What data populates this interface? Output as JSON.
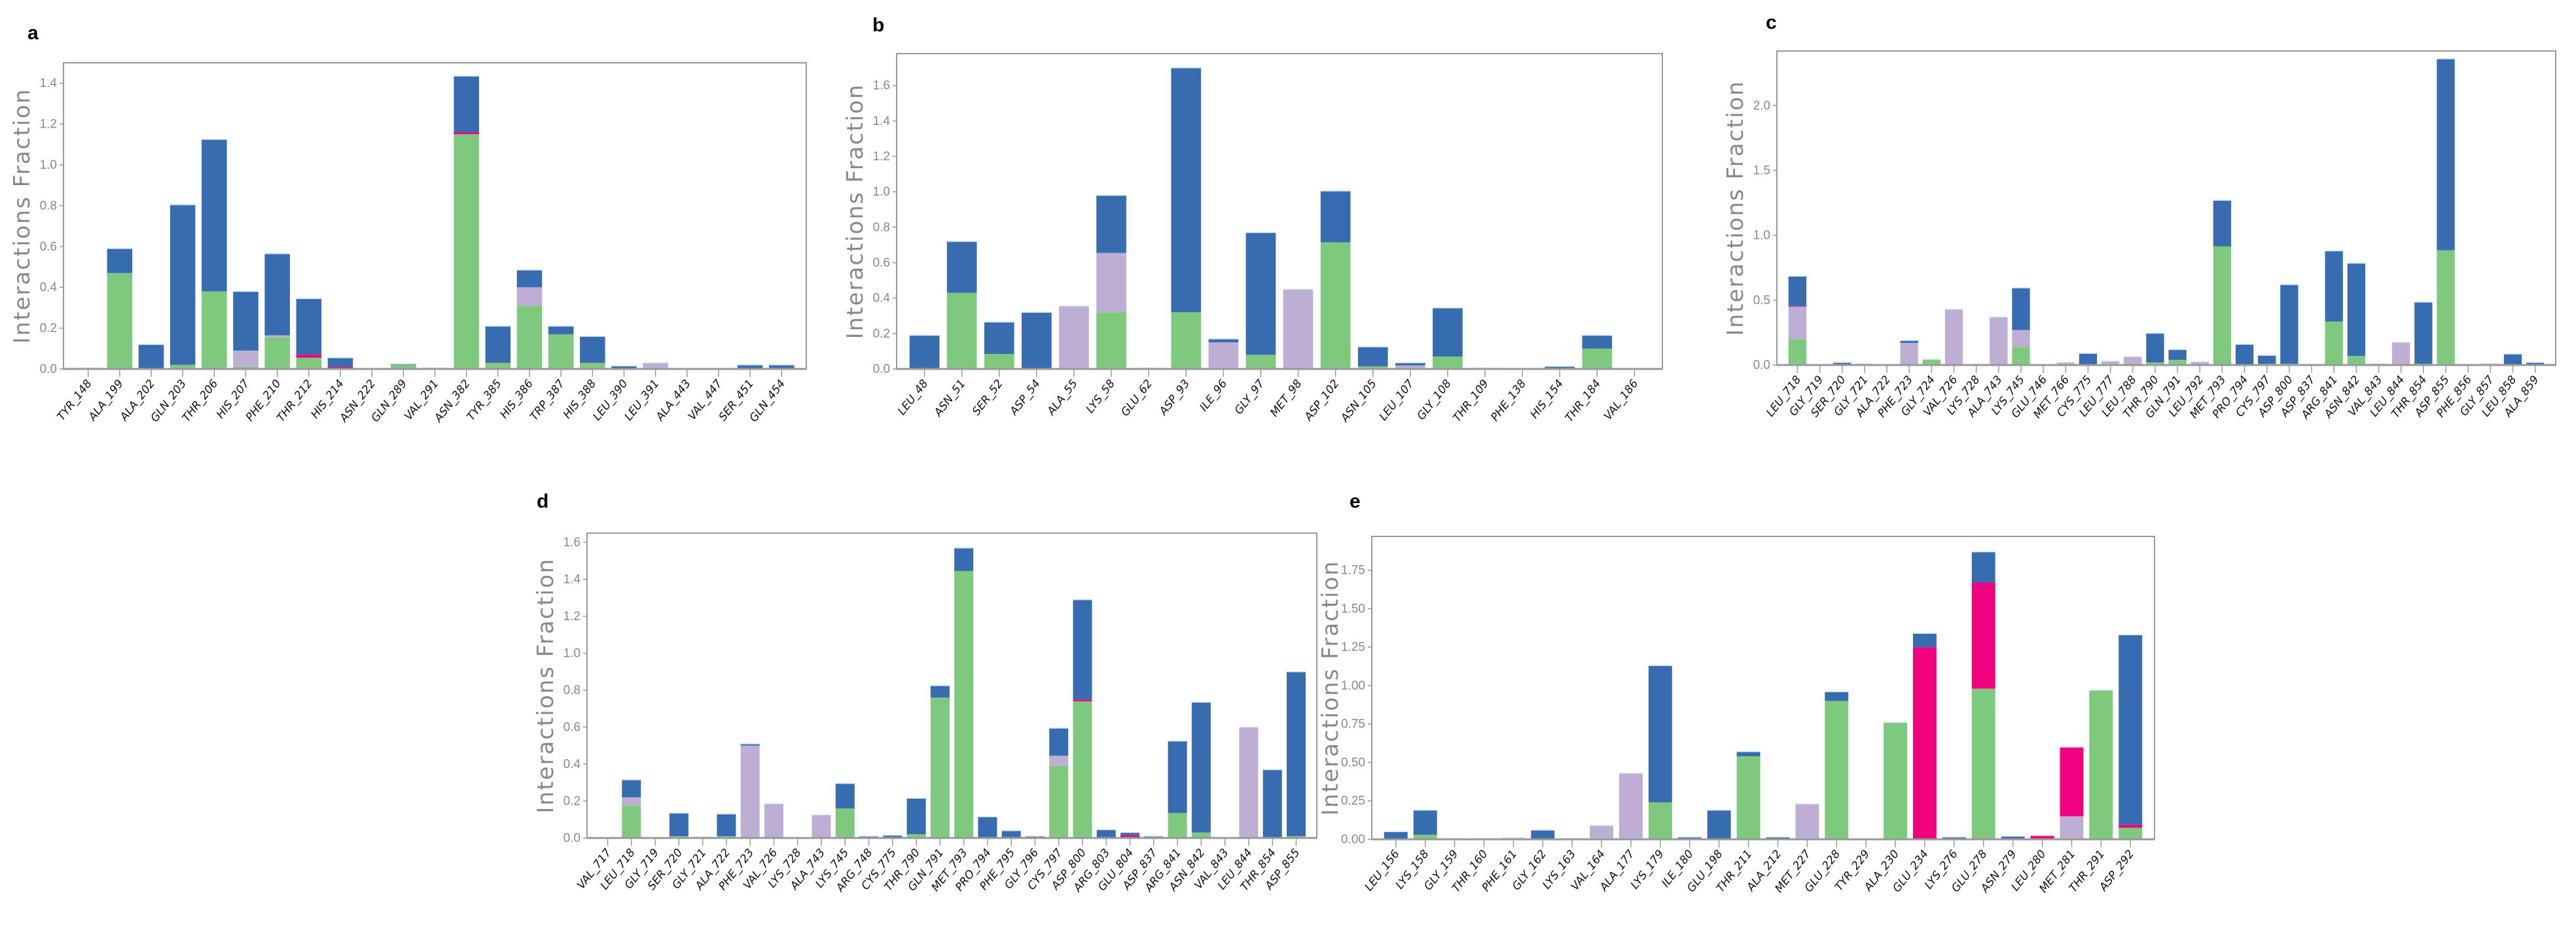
{
  "chart_data": [
    {
      "panel": "a",
      "type": "bar",
      "stacked": true,
      "ylabel": "Interactions Fraction",
      "ylim": [
        0,
        1.5
      ],
      "ytick_step": 0.2,
      "ytick_decimals": 1,
      "categories": [
        "TYR_148",
        "ALA_199",
        "ALA_202",
        "GLN_203",
        "THR_206",
        "HIS_207",
        "PHE_210",
        "THR_212",
        "HIS_214",
        "ASN_222",
        "GLN_289",
        "VAL_291",
        "ASN_382",
        "TYR_385",
        "HIS_386",
        "TRP_387",
        "HIS_388",
        "LEU_390",
        "LEU_391",
        "ALA_443",
        "VAL_447",
        "SER_451",
        "GLN_454"
      ],
      "series": [
        {
          "key": "green",
          "color": "#7fc97f",
          "values": [
            0,
            0.47,
            0,
            0.02,
            0.38,
            0.01,
            0.155,
            0.055,
            0,
            0,
            0.02,
            0,
            1.15,
            0.03,
            0.31,
            0.17,
            0.03,
            0,
            0,
            0,
            0,
            0,
            0.005
          ]
        },
        {
          "key": "lavender",
          "color": "#beaed4",
          "values": [
            0,
            0,
            0,
            0,
            0,
            0.08,
            0.01,
            0,
            0,
            0,
            0,
            0,
            0,
            0,
            0.09,
            0,
            0,
            0,
            0.03,
            0,
            0,
            0,
            0
          ]
        },
        {
          "key": "magenta",
          "color": "#f0027f",
          "values": [
            0,
            0,
            0,
            0,
            0,
            0,
            0,
            0.015,
            0.01,
            0,
            0,
            0,
            0.01,
            0,
            0,
            0,
            0,
            0,
            0,
            0,
            0,
            0,
            0
          ]
        },
        {
          "key": "blue",
          "color": "#386cb0",
          "values": [
            0.005,
            0.12,
            0.12,
            0.785,
            0.745,
            0.29,
            0.4,
            0.275,
            0.045,
            0,
            0.005,
            0.005,
            0.275,
            0.18,
            0.085,
            0.04,
            0.13,
            0.015,
            0,
            0,
            0,
            0.02,
            0.015
          ]
        }
      ]
    },
    {
      "panel": "b",
      "type": "bar",
      "stacked": true,
      "ylabel": "Interactions Fraction",
      "ylim": [
        0,
        1.78
      ],
      "ytick_step": 0.2,
      "ytick_decimals": 1,
      "categories": [
        "LEU_48",
        "ASN_51",
        "SER_52",
        "ASP_54",
        "ALA_55",
        "LYS_58",
        "GLU_62",
        "ASP_93",
        "ILE_96",
        "GLY_97",
        "MET_98",
        "ASP_102",
        "ASN_105",
        "LEU_107",
        "GLY_108",
        "THR_109",
        "PHE_138",
        "HIS_154",
        "THR_184",
        "VAL_186"
      ],
      "series": [
        {
          "key": "green",
          "color": "#7fc97f",
          "values": [
            0,
            0.43,
            0.085,
            0,
            0,
            0.32,
            0,
            0.32,
            0,
            0.08,
            0,
            0.715,
            0.015,
            0,
            0.07,
            0,
            0,
            0,
            0.115,
            0
          ]
        },
        {
          "key": "lavender",
          "color": "#beaed4",
          "values": [
            0,
            0,
            0,
            0,
            0.355,
            0.335,
            0,
            0,
            0.15,
            0,
            0.45,
            0,
            0,
            0.02,
            0,
            0,
            0,
            0,
            0,
            0
          ]
        },
        {
          "key": "magenta",
          "color": "#f0027f",
          "values": [
            0,
            0,
            0,
            0,
            0,
            0,
            0,
            0,
            0,
            0,
            0,
            0,
            0,
            0,
            0,
            0,
            0,
            0,
            0,
            0
          ]
        },
        {
          "key": "blue",
          "color": "#386cb0",
          "values": [
            0.19,
            0.29,
            0.18,
            0.32,
            0,
            0.325,
            0.005,
            1.38,
            0.02,
            0.69,
            0,
            0.29,
            0.11,
            0.015,
            0.275,
            0.005,
            0,
            0.015,
            0.075,
            0
          ]
        }
      ]
    },
    {
      "panel": "c",
      "type": "bar",
      "stacked": true,
      "ylabel": "Interactions Fraction",
      "ylim": [
        0,
        2.42
      ],
      "ytick_step": 0.5,
      "ytick_decimals": 1,
      "categories": [
        "LEU_718",
        "GLY_719",
        "SER_720",
        "GLY_721",
        "ALA_722",
        "PHE_723",
        "GLY_724",
        "VAL_726",
        "LYS_728",
        "ALA_743",
        "LYS_745",
        "GLU_746",
        "MET_766",
        "CYS_775",
        "LEU_777",
        "LEU_788",
        "THR_790",
        "GLN_791",
        "LEU_792",
        "MET_793",
        "PRO_794",
        "CYS_797",
        "ASP_800",
        "ASP_837",
        "ARG_841",
        "ASN_842",
        "VAL_843",
        "LEU_844",
        "THR_854",
        "ASP_855",
        "PHE_856",
        "GLY_857",
        "LEU_858",
        "ALA_859"
      ],
      "series": [
        {
          "key": "green",
          "color": "#7fc97f",
          "values": [
            0.2,
            0,
            0,
            0,
            0,
            0,
            0.04,
            0,
            0,
            0,
            0.14,
            0,
            0,
            0,
            0,
            0,
            0.02,
            0.04,
            0,
            0.915,
            0,
            0.01,
            0.01,
            0,
            0.335,
            0.07,
            0,
            0,
            0.01,
            0.885,
            0,
            0,
            0,
            0
          ]
        },
        {
          "key": "lavender",
          "color": "#beaed4",
          "values": [
            0.25,
            0,
            0,
            0,
            0,
            0.17,
            0.005,
            0.43,
            0,
            0.37,
            0.13,
            0,
            0.02,
            0,
            0.03,
            0.065,
            0,
            0,
            0.025,
            0,
            0,
            0,
            0,
            0,
            0,
            0,
            0,
            0.175,
            0,
            0,
            0,
            0,
            0,
            0
          ]
        },
        {
          "key": "magenta",
          "color": "#f0027f",
          "values": [
            0.005,
            0,
            0,
            0,
            0,
            0,
            0,
            0,
            0,
            0,
            0,
            0,
            0,
            0,
            0,
            0,
            0,
            0,
            0,
            0,
            0,
            0,
            0,
            0,
            0,
            0,
            0,
            0,
            0,
            0,
            0,
            0,
            0,
            0
          ]
        },
        {
          "key": "blue",
          "color": "#386cb0",
          "values": [
            0.23,
            0,
            0.02,
            0.01,
            0,
            0.02,
            0,
            0,
            0,
            0,
            0.325,
            0,
            0,
            0.09,
            0,
            0,
            0.225,
            0.08,
            0,
            0.355,
            0.16,
            0.065,
            0.61,
            0,
            0.545,
            0.715,
            0.01,
            0,
            0.475,
            1.475,
            0,
            0.01,
            0.085,
            0.02
          ]
        }
      ]
    },
    {
      "panel": "d",
      "type": "bar",
      "stacked": true,
      "ylabel": "Interactions Fraction",
      "ylim": [
        0,
        1.65
      ],
      "ytick_step": 0.2,
      "ytick_decimals": 1,
      "categories": [
        "VAL_717",
        "LEU_718",
        "GLY_719",
        "SER_720",
        "GLY_721",
        "ALA_722",
        "PHE_723",
        "VAL_726",
        "LYS_728",
        "ALA_743",
        "LYS_745",
        "ARG_748",
        "CYS_775",
        "THR_790",
        "GLN_791",
        "MET_793",
        "PRO_794",
        "PHE_795",
        "GLY_796",
        "CYS_797",
        "ASP_800",
        "ARG_803",
        "GLU_804",
        "ASP_837",
        "ARG_841",
        "ASN_842",
        "VAL_843",
        "LEU_844",
        "THR_854",
        "ASP_855"
      ],
      "series": [
        {
          "key": "green",
          "color": "#7fc97f",
          "values": [
            0,
            0.175,
            0,
            0.01,
            0,
            0.01,
            0,
            0,
            0,
            0,
            0.16,
            0,
            0,
            0.02,
            0.76,
            1.445,
            0,
            0,
            0,
            0.39,
            0.74,
            0,
            0,
            0,
            0.135,
            0.03,
            0,
            0,
            0,
            0.01
          ]
        },
        {
          "key": "lavender",
          "color": "#beaed4",
          "values": [
            0,
            0.045,
            0,
            0,
            0,
            0,
            0.5,
            0.185,
            0,
            0.125,
            0,
            0,
            0,
            0,
            0,
            0,
            0,
            0,
            0,
            0.055,
            0,
            0,
            0,
            0,
            0,
            0,
            0,
            0.6,
            0,
            0
          ]
        },
        {
          "key": "magenta",
          "color": "#f0027f",
          "values": [
            0,
            0,
            0,
            0,
            0,
            0,
            0,
            0,
            0,
            0,
            0,
            0,
            0,
            0,
            0,
            0,
            0,
            0,
            0,
            0,
            0.01,
            0,
            0.015,
            0,
            0,
            0,
            0,
            0,
            0,
            0
          ]
        },
        {
          "key": "blue",
          "color": "#386cb0",
          "values": [
            0,
            0.095,
            0,
            0.125,
            0.005,
            0.12,
            0.01,
            0,
            0,
            0,
            0.135,
            0.01,
            0.015,
            0.195,
            0.065,
            0.125,
            0.115,
            0.04,
            0.01,
            0.15,
            0.54,
            0.045,
            0.015,
            0.01,
            0.39,
            0.705,
            0,
            0,
            0.37,
            0.89
          ]
        }
      ]
    },
    {
      "panel": "e",
      "type": "bar",
      "stacked": true,
      "ylabel": "Interactions Fraction",
      "ylim": [
        0,
        1.97
      ],
      "ytick_step": 0.25,
      "ytick_decimals": 2,
      "categories": [
        "LEU_156",
        "LYS_158",
        "GLY_159",
        "THR_160",
        "PHE_161",
        "GLY_162",
        "LYS_163",
        "VAL_164",
        "ALA_177",
        "LYS_179",
        "ILE_180",
        "GLU_198",
        "THR_211",
        "ALA_212",
        "MET_227",
        "GLU_228",
        "TYR_229",
        "ALA_230",
        "GLU_234",
        "LYS_276",
        "GLU_278",
        "ASN_279",
        "LEU_280",
        "MET_281",
        "THR_291",
        "ASP_292"
      ],
      "series": [
        {
          "key": "green",
          "color": "#7fc97f",
          "values": [
            0,
            0.03,
            0,
            0,
            0,
            0,
            0,
            0,
            0,
            0.24,
            0,
            0,
            0.54,
            0,
            0,
            0.9,
            0,
            0.76,
            0,
            0,
            0.98,
            0,
            0,
            0,
            0.97,
            0.075
          ]
        },
        {
          "key": "lavender",
          "color": "#beaed4",
          "values": [
            0,
            0,
            0.005,
            0,
            0,
            0,
            0.005,
            0.09,
            0.43,
            0,
            0,
            0,
            0,
            0,
            0.23,
            0,
            0,
            0,
            0,
            0,
            0,
            0,
            0,
            0.15,
            0,
            0
          ]
        },
        {
          "key": "magenta",
          "color": "#f0027f",
          "values": [
            0,
            0,
            0,
            0.005,
            0,
            0,
            0,
            0,
            0,
            0,
            0,
            0,
            0,
            0,
            0,
            0,
            0,
            0,
            1.25,
            0,
            0.69,
            0,
            0.025,
            0.45,
            0,
            0.02
          ]
        },
        {
          "key": "blue",
          "color": "#386cb0",
          "values": [
            0.05,
            0.16,
            0,
            0,
            0.01,
            0.06,
            0,
            0,
            0,
            0.89,
            0.015,
            0.19,
            0.03,
            0.015,
            0,
            0.06,
            0,
            0,
            0.09,
            0.015,
            0.2,
            0.02,
            0,
            0,
            0,
            1.235
          ]
        }
      ]
    }
  ]
}
